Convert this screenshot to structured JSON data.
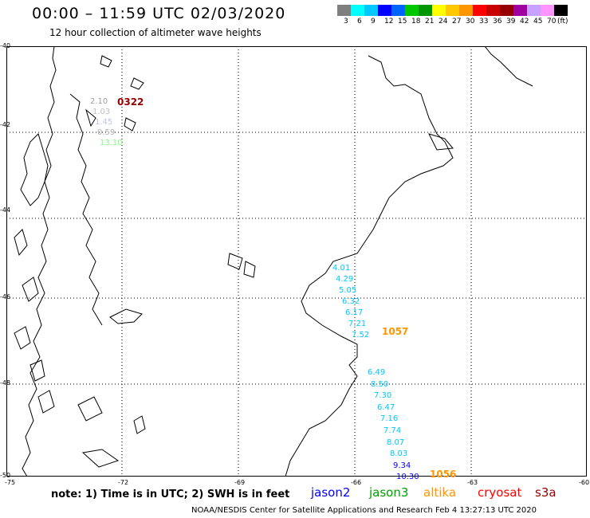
{
  "header": {
    "title": "00:00 – 11:59 UTC 02/03/2020",
    "subtitle": "12 hour collection of altimeter wave heights"
  },
  "legend": {
    "colors": [
      "#7f7f7f",
      "#00ffff",
      "#00c8ff",
      "#0000ff",
      "#0064ff",
      "#00c800",
      "#009600",
      "#ffff00",
      "#ffc800",
      "#ff9600",
      "#ff0000",
      "#c80000",
      "#960000",
      "#a000a0",
      "#c8a0ff",
      "#ff96ff",
      "#000000"
    ],
    "labels": [
      "3",
      "6",
      "9",
      "12",
      "15",
      "18",
      "21",
      "24",
      "27",
      "30",
      "33",
      "36",
      "39",
      "42",
      "45",
      "70",
      "(ft)"
    ]
  },
  "axes": {
    "x_ticks": [
      "-75",
      "-72",
      "-69",
      "-66",
      "-63",
      "-60"
    ],
    "y_ticks": [
      "-40",
      "-42",
      "-44",
      "-46",
      "-48",
      "-50"
    ]
  },
  "tracks": {
    "cluster_a": {
      "label": "0322",
      "label_color": "#960000",
      "values": [
        {
          "v": "2.10",
          "c": "#a0a0a0"
        },
        {
          "v": "1.03",
          "c": "#c0c0c0"
        },
        {
          "v": "1.45",
          "c": "#c0c0f0"
        },
        {
          "v": "0.59",
          "c": "#b0b0b0"
        },
        {
          "v": "13.10",
          "c": "#80ff80"
        }
      ]
    },
    "cluster_b": {
      "label": "1057",
      "label_color": "#ff9600",
      "values": [
        {
          "v": "4.01",
          "c": "#00c8ff"
        },
        {
          "v": "4.29",
          "c": "#00c8ff"
        },
        {
          "v": "5.05",
          "c": "#00c8ff"
        },
        {
          "v": "6.32",
          "c": "#00c8ff"
        },
        {
          "v": "6.17",
          "c": "#00c8ff"
        },
        {
          "v": "7.21",
          "c": "#00c8ff"
        },
        {
          "v": "7.52",
          "c": "#00c8ff"
        }
      ]
    },
    "cluster_c": {
      "label": "1056",
      "label_color": "#ff9600",
      "values": [
        {
          "v": "6.49",
          "c": "#00c8ff"
        },
        {
          "v": "8.50",
          "c": "#00c8ff"
        },
        {
          "v": "7.30",
          "c": "#00c8ff"
        },
        {
          "v": "6.47",
          "c": "#00c8ff"
        },
        {
          "v": "7.16",
          "c": "#00c8ff"
        },
        {
          "v": "7.74",
          "c": "#00c8ff"
        },
        {
          "v": "8.07",
          "c": "#00c8ff"
        },
        {
          "v": "8.03",
          "c": "#00c8ff"
        },
        {
          "v": "9.34",
          "c": "#0000ff"
        },
        {
          "v": "10.30",
          "c": "#0000ff"
        }
      ]
    }
  },
  "footer": {
    "note": "note: 1) Time is in UTC; 2) SWH is in feet",
    "satellites": [
      {
        "name": "jason2",
        "color": "#0000ff"
      },
      {
        "name": "jason3",
        "color": "#00a000"
      },
      {
        "name": "altika",
        "color": "#ff9600"
      },
      {
        "name": "cryosat",
        "color": "#ff0000"
      },
      {
        "name": "s3a",
        "color": "#960000"
      }
    ],
    "credit": "NOAA/NESDIS Center for Satellite Applications and Research   Feb  4 13:27:13 UTC 2020"
  }
}
